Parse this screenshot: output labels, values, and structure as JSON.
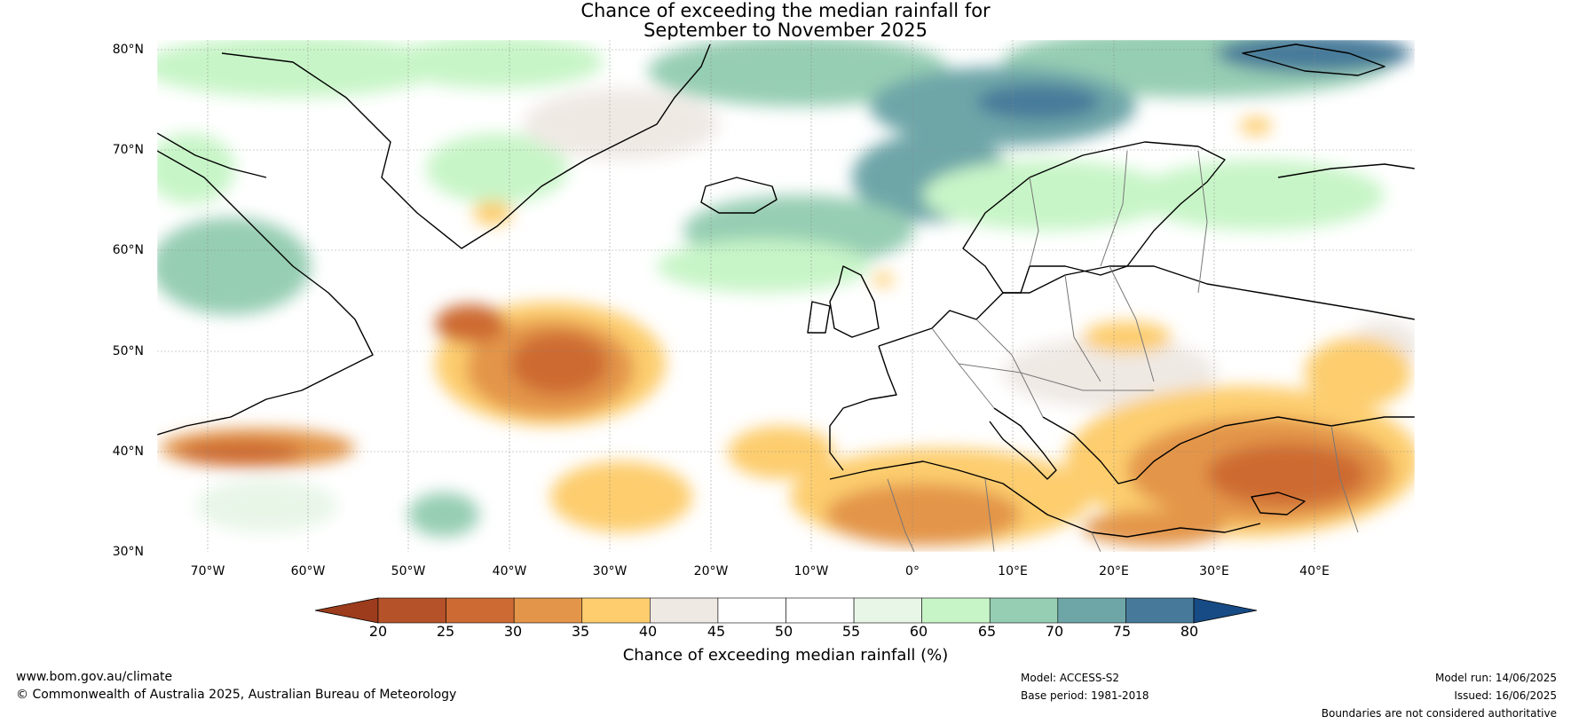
{
  "title": {
    "line1": "Chance of exceeding the median rainfall for",
    "line2": "September to November 2025"
  },
  "map": {
    "lat_labels": [
      "80°N",
      "70°N",
      "60°N",
      "50°N",
      "40°N",
      "30°N"
    ],
    "lon_labels": [
      "70°W",
      "60°W",
      "50°W",
      "40°W",
      "30°W",
      "20°W",
      "10°W",
      "0°",
      "10°E",
      "20°E",
      "30°E",
      "40°E"
    ],
    "lat_range": [
      30,
      80
    ],
    "lon_range": [
      -75,
      50
    ],
    "gridlines": true
  },
  "colorbar": {
    "title": "Chance of exceeding median rainfall (%)",
    "ticks": [
      "20",
      "25",
      "30",
      "35",
      "40",
      "45",
      "50",
      "55",
      "60",
      "65",
      "70",
      "75",
      "80"
    ],
    "colors": [
      "#9c3c1c",
      "#b5522a",
      "#cd6a33",
      "#e3954a",
      "#fdcd6e",
      "#efe9e4",
      "#ffffff",
      "#ffffff",
      "#e8f6e8",
      "#c8f5c8",
      "#96ceb3",
      "#6ea6a8",
      "#477a9a",
      "#174b85"
    ]
  },
  "footer": {
    "website": "www.bom.gov.au/climate",
    "copyright": "© Commonwealth of Australia 2025, Australian Bureau of Meteorology",
    "model": "Model: ACCESS-S2",
    "base_period": "Base period: 1981-2018",
    "model_run": "Model run: 14/06/2025",
    "issued": "Issued: 16/06/2025",
    "disclaimer": "Boundaries are not considered authoritative"
  }
}
